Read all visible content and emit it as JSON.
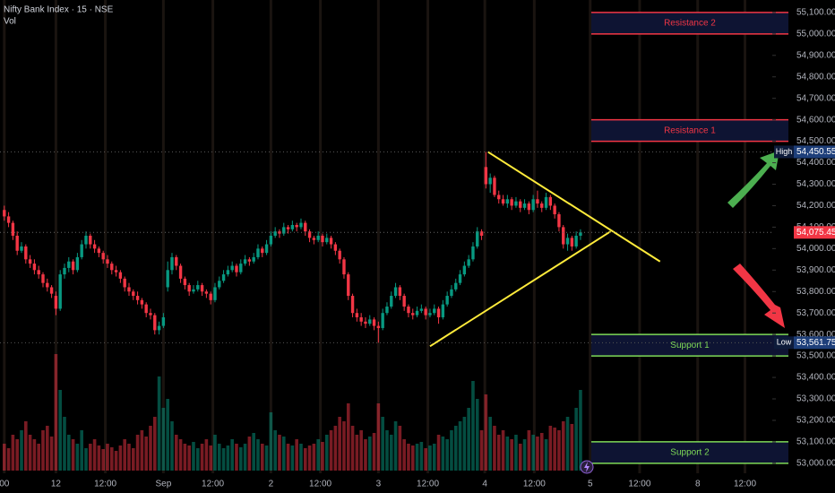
{
  "chart_data": {
    "type": "candlestick",
    "title": "Nifty Bank Index · 15 · NSE",
    "subtitle": "Vol",
    "up_color": "#089981",
    "down_color": "#f23645",
    "xlim": [
      -1,
      178.6
    ],
    "ylim": [
      52966,
      55158
    ],
    "xticks": [
      {
        "value": 0,
        "label": "00"
      },
      12,
      {
        "value": 23.5,
        "label": "12:00"
      },
      {
        "value": 37,
        "label": "Sep"
      },
      {
        "value": 48.5,
        "label": "12:00"
      },
      {
        "value": 62,
        "label": "2"
      },
      {
        "value": 73.5,
        "label": "12:00"
      },
      {
        "value": 87,
        "label": "3"
      },
      {
        "value": 98.5,
        "label": "12:00"
      },
      {
        "value": 111.75,
        "label": "4"
      },
      {
        "value": 123.25,
        "label": "12:00"
      },
      {
        "value": 136.25,
        "label": "5"
      },
      {
        "value": 147.75,
        "label": "12:00"
      },
      {
        "value": 161.25,
        "label": "8"
      },
      {
        "value": 172.25,
        "label": "12:00"
      }
    ],
    "yticks": [
      {
        "value": 53000,
        "label": "53,000.00"
      },
      {
        "value": 53100,
        "label": "53,100.00"
      },
      {
        "value": 53200,
        "label": "53,200.00"
      },
      {
        "value": 53300,
        "label": "53,300.00"
      },
      {
        "value": 53400,
        "label": "53,400.00"
      },
      {
        "value": 53500,
        "label": "53,500.00"
      },
      {
        "value": 53600,
        "label": "53,600.00"
      },
      {
        "value": 53700,
        "label": "53,700.00"
      },
      {
        "value": 53800,
        "label": "53,800.00"
      },
      {
        "value": 53900,
        "label": "53,900.00"
      },
      {
        "value": 54000,
        "label": "54,000.00"
      },
      {
        "value": 54100,
        "label": "54,100.00"
      },
      {
        "value": 54200,
        "label": "54,200.00"
      },
      {
        "value": 54300,
        "label": "54,300.00"
      },
      {
        "value": 54400,
        "label": "54,400.00"
      },
      {
        "value": 54500,
        "label": "54,500.00"
      },
      {
        "value": 54600,
        "label": "54,600.00"
      },
      {
        "value": 54700,
        "label": "54,700.00"
      },
      {
        "value": 54800,
        "label": "54,800.00"
      },
      {
        "value": 54900,
        "label": "54,900.00"
      },
      {
        "value": 55000,
        "label": "55,000.00"
      },
      {
        "value": 55100,
        "label": "55,100.00"
      }
    ],
    "candles": [
      [
        54180,
        54200,
        54130,
        54150
      ],
      [
        54150,
        54170,
        54100,
        54120
      ],
      [
        54120,
        54130,
        54040,
        54060
      ],
      [
        54060,
        54080,
        53970,
        53990
      ],
      [
        53990,
        54030,
        53980,
        54010
      ],
      [
        54010,
        54020,
        53930,
        53950
      ],
      [
        53950,
        53970,
        53910,
        53930
      ],
      [
        53930,
        53950,
        53880,
        53900
      ],
      [
        53900,
        53920,
        53860,
        53880
      ],
      [
        53880,
        53890,
        53820,
        53840
      ],
      [
        53840,
        53860,
        53800,
        53820
      ],
      [
        53820,
        53830,
        53770,
        53790
      ],
      [
        53780,
        53800,
        53690,
        53720
      ],
      [
        53720,
        53900,
        53710,
        53880
      ],
      [
        53880,
        53930,
        53860,
        53910
      ],
      [
        53910,
        53960,
        53890,
        53940
      ],
      [
        53940,
        53950,
        53880,
        53900
      ],
      [
        53900,
        53980,
        53890,
        53960
      ],
      [
        53960,
        54040,
        53950,
        54020
      ],
      [
        54020,
        54080,
        54000,
        54060
      ],
      [
        54060,
        54070,
        54000,
        54020
      ],
      [
        54020,
        54040,
        53980,
        54000
      ],
      [
        54000,
        54010,
        53960,
        53980
      ],
      [
        53980,
        53990,
        53930,
        53950
      ],
      [
        53950,
        53970,
        53910,
        53930
      ],
      [
        53930,
        53940,
        53880,
        53900
      ],
      [
        53900,
        53920,
        53870,
        53890
      ],
      [
        53890,
        53900,
        53840,
        53860
      ],
      [
        53860,
        53870,
        53800,
        53820
      ],
      [
        53820,
        53840,
        53780,
        53800
      ],
      [
        53800,
        53810,
        53760,
        53780
      ],
      [
        53780,
        53800,
        53740,
        53760
      ],
      [
        53760,
        53770,
        53720,
        53740
      ],
      [
        53740,
        53750,
        53680,
        53700
      ],
      [
        53700,
        53720,
        53670,
        53690
      ],
      [
        53690,
        53700,
        53600,
        53620
      ],
      [
        53620,
        53660,
        53600,
        53640
      ],
      [
        53640,
        53700,
        53630,
        53680
      ],
      [
        53820,
        53940,
        53800,
        53900
      ],
      [
        53900,
        53980,
        53880,
        53960
      ],
      [
        53960,
        53970,
        53900,
        53920
      ],
      [
        53920,
        53930,
        53840,
        53860
      ],
      [
        53860,
        53870,
        53810,
        53830
      ],
      [
        53830,
        53840,
        53780,
        53800
      ],
      [
        53800,
        53830,
        53790,
        53810
      ],
      [
        53810,
        53850,
        53800,
        53830
      ],
      [
        53830,
        53840,
        53780,
        53800
      ],
      [
        53800,
        53810,
        53770,
        53790
      ],
      [
        53790,
        53800,
        53740,
        53760
      ],
      [
        53760,
        53840,
        53750,
        53820
      ],
      [
        53820,
        53870,
        53810,
        53850
      ],
      [
        53850,
        53900,
        53840,
        53880
      ],
      [
        53880,
        53920,
        53870,
        53900
      ],
      [
        53900,
        53940,
        53890,
        53920
      ],
      [
        53920,
        53930,
        53870,
        53890
      ],
      [
        53890,
        53950,
        53880,
        53930
      ],
      [
        53930,
        53970,
        53920,
        53950
      ],
      [
        53950,
        53960,
        53920,
        53940
      ],
      [
        53940,
        53980,
        53930,
        53960
      ],
      [
        53960,
        54020,
        53950,
        54000
      ],
      [
        54000,
        54010,
        53960,
        53980
      ],
      [
        53980,
        54040,
        53970,
        54020
      ],
      [
        54020,
        54080,
        54010,
        54060
      ],
      [
        54060,
        54100,
        54050,
        54080
      ],
      [
        54080,
        54090,
        54050,
        54070
      ],
      [
        54070,
        54120,
        54060,
        54100
      ],
      [
        54100,
        54110,
        54070,
        54090
      ],
      [
        54090,
        54130,
        54080,
        54110
      ],
      [
        54110,
        54120,
        54080,
        54100
      ],
      [
        54100,
        54140,
        54090,
        54120
      ],
      [
        54120,
        54130,
        54060,
        54080
      ],
      [
        54080,
        54090,
        54030,
        54050
      ],
      [
        54050,
        54060,
        54020,
        54040
      ],
      [
        54040,
        54080,
        54030,
        54060
      ],
      [
        54060,
        54070,
        54010,
        54030
      ],
      [
        54030,
        54070,
        54020,
        54050
      ],
      [
        54050,
        54060,
        54000,
        54020
      ],
      [
        54020,
        54030,
        53970,
        53990
      ],
      [
        53990,
        54000,
        53930,
        53950
      ],
      [
        53950,
        53960,
        53860,
        53880
      ],
      [
        53880,
        53890,
        53760,
        53780
      ],
      [
        53780,
        53790,
        53680,
        53700
      ],
      [
        53700,
        53720,
        53660,
        53680
      ],
      [
        53680,
        53700,
        53640,
        53660
      ],
      [
        53660,
        53680,
        53630,
        53650
      ],
      [
        53650,
        53690,
        53640,
        53670
      ],
      [
        53670,
        53680,
        53620,
        53640
      ],
      [
        53640,
        53660,
        53561.75,
        53630
      ],
      [
        53630,
        53720,
        53620,
        53700
      ],
      [
        53700,
        53750,
        53690,
        53730
      ],
      [
        53730,
        53800,
        53720,
        53780
      ],
      [
        53780,
        53840,
        53770,
        53820
      ],
      [
        53820,
        53830,
        53760,
        53780
      ],
      [
        53780,
        53790,
        53710,
        53730
      ],
      [
        53730,
        53740,
        53680,
        53700
      ],
      [
        53700,
        53720,
        53670,
        53690
      ],
      [
        53690,
        53730,
        53680,
        53710
      ],
      [
        53710,
        53740,
        53700,
        53720
      ],
      [
        53720,
        53730,
        53670,
        53690
      ],
      [
        53690,
        53720,
        53680,
        53700
      ],
      [
        53700,
        53740,
        53690,
        53720
      ],
      [
        53720,
        53730,
        53650,
        53680
      ],
      [
        53680,
        53760,
        53670,
        53740
      ],
      [
        53740,
        53800,
        53730,
        53780
      ],
      [
        53780,
        53830,
        53770,
        53810
      ],
      [
        53810,
        53860,
        53800,
        53840
      ],
      [
        53840,
        53900,
        53830,
        53880
      ],
      [
        53880,
        53940,
        53870,
        53920
      ],
      [
        53920,
        53970,
        53910,
        53950
      ],
      [
        53950,
        54030,
        53940,
        54010
      ],
      [
        54010,
        54100,
        54000,
        54080
      ],
      [
        54080,
        54090,
        54040,
        54060
      ],
      [
        54380,
        54450.55,
        54280,
        54300
      ],
      [
        54300,
        54350,
        54260,
        54330
      ],
      [
        54330,
        54340,
        54240,
        54250
      ],
      [
        54250,
        54270,
        54210,
        54230
      ],
      [
        54230,
        54250,
        54200,
        54210
      ],
      [
        54210,
        54250,
        54190,
        54230
      ],
      [
        54230,
        54240,
        54180,
        54200
      ],
      [
        54200,
        54240,
        54190,
        54220
      ],
      [
        54220,
        54230,
        54170,
        54190
      ],
      [
        54190,
        54230,
        54180,
        54210
      ],
      [
        54210,
        54220,
        54160,
        54180
      ],
      [
        54180,
        54250,
        54170,
        54230
      ],
      [
        54230,
        54270,
        54190,
        54210
      ],
      [
        54210,
        54220,
        54170,
        54190
      ],
      [
        54190,
        54260,
        54180,
        54240
      ],
      [
        54240,
        54250,
        54180,
        54200
      ],
      [
        54200,
        54210,
        54140,
        54160
      ],
      [
        54160,
        54170,
        54080,
        54100
      ],
      [
        54100,
        54110,
        54000,
        54020
      ],
      [
        54020,
        54070,
        53990,
        54050
      ],
      [
        54050,
        54060,
        53990,
        54010
      ],
      [
        54010,
        54080,
        54000,
        54060
      ],
      [
        54060,
        54090,
        54040,
        54075.45
      ]
    ],
    "volume": [
      30,
      25,
      40,
      35,
      45,
      55,
      40,
      35,
      30,
      45,
      50,
      38,
      130,
      90,
      60,
      40,
      35,
      30,
      45,
      25,
      30,
      35,
      28,
      24,
      30,
      26,
      22,
      28,
      35,
      30,
      25,
      40,
      45,
      38,
      50,
      60,
      105,
      70,
      80,
      55,
      40,
      35,
      30,
      28,
      32,
      25,
      30,
      35,
      28,
      40,
      30,
      25,
      28,
      35,
      30,
      26,
      30,
      38,
      42,
      35,
      30,
      28,
      65,
      45,
      40,
      38,
      30,
      28,
      35,
      30,
      25,
      28,
      30,
      35,
      32,
      40,
      45,
      50,
      60,
      55,
      75,
      50,
      40,
      45,
      35,
      38,
      42,
      75,
      60,
      45,
      40,
      55,
      50,
      35,
      30,
      28,
      30,
      32,
      25,
      28,
      30,
      40,
      38,
      35,
      45,
      50,
      55,
      60,
      70,
      100,
      80,
      45,
      85,
      60,
      50,
      40,
      45,
      38,
      35,
      40,
      30,
      35,
      45,
      40,
      38,
      42,
      35,
      50,
      48,
      45,
      55,
      60,
      52,
      70,
      90
    ],
    "zones": [
      {
        "label": "Resistance 2",
        "from": 55000,
        "to": 55100,
        "color": "#f23645",
        "x_start": 136.5
      },
      {
        "label": "Resistance 1",
        "from": 54500,
        "to": 54600,
        "color": "#f23645",
        "x_start": 136.5
      },
      {
        "label": "Support 1",
        "from": 53500,
        "to": 53600,
        "color": "#7ed957",
        "x_start": 136.5
      },
      {
        "label": "Support 2",
        "from": 53000,
        "to": 53100,
        "color": "#7ed957",
        "x_start": 136.5
      }
    ],
    "trendlines": [
      {
        "color": "#ffeb3b",
        "x": [
          112.5,
          152.5
        ],
        "y": [
          54450,
          53940
        ]
      },
      {
        "color": "#ffeb3b",
        "x": [
          99,
          141
        ],
        "y": [
          53545,
          54080
        ]
      }
    ],
    "price_labels": [
      {
        "name": "High",
        "value": 54450.55,
        "value_label": "54,450.55"
      },
      {
        "name": "Low",
        "value": 53561.75,
        "value_label": "53,561.75"
      }
    ],
    "last_price": {
      "value": 54075.45,
      "value_label": "54,075.45",
      "color": "#f23645"
    }
  }
}
